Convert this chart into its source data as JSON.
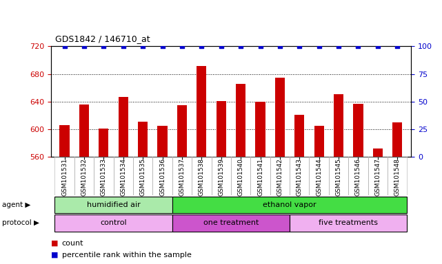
{
  "title": "GDS1842 / 146710_at",
  "samples": [
    "GSM101531",
    "GSM101532",
    "GSM101533",
    "GSM101534",
    "GSM101535",
    "GSM101536",
    "GSM101537",
    "GSM101538",
    "GSM101539",
    "GSM101540",
    "GSM101541",
    "GSM101542",
    "GSM101543",
    "GSM101544",
    "GSM101545",
    "GSM101546",
    "GSM101547",
    "GSM101548"
  ],
  "counts": [
    606,
    636,
    601,
    647,
    611,
    605,
    635,
    691,
    641,
    666,
    640,
    675,
    621,
    605,
    651,
    637,
    572,
    610
  ],
  "percentile": [
    100,
    100,
    100,
    100,
    100,
    100,
    100,
    100,
    100,
    100,
    100,
    100,
    100,
    100,
    100,
    100,
    100,
    100
  ],
  "bar_color": "#cc0000",
  "dot_color": "#0000cc",
  "ylim_left": [
    560,
    720
  ],
  "ylim_right": [
    0,
    100
  ],
  "yticks_left": [
    560,
    600,
    640,
    680,
    720
  ],
  "yticks_right": [
    0,
    25,
    50,
    75,
    100
  ],
  "agent_groups": [
    {
      "label": "humidified air",
      "start": 0,
      "end": 6,
      "color": "#aaeaaa"
    },
    {
      "label": "ethanol vapor",
      "start": 6,
      "end": 18,
      "color": "#44dd44"
    }
  ],
  "protocol_groups": [
    {
      "label": "control",
      "start": 0,
      "end": 6,
      "color": "#f0b0f0"
    },
    {
      "label": "one treatment",
      "start": 6,
      "end": 12,
      "color": "#cc55cc"
    },
    {
      "label": "five treatments",
      "start": 12,
      "end": 18,
      "color": "#f0b0f0"
    }
  ],
  "legend_count_label": "count",
  "legend_pct_label": "percentile rank within the sample",
  "agent_label": "agent",
  "protocol_label": "protocol",
  "grid_color": "#000000",
  "background_color": "#ffffff",
  "plot_bg_color": "#ffffff",
  "tick_bg_color": "#e0e0e0"
}
